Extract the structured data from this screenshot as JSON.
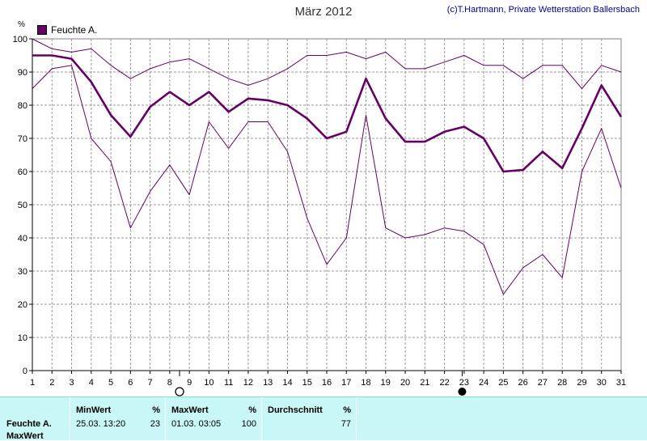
{
  "title": "März 2012",
  "copyright": "(c)T.Hartmann, Private Wetterstation Ballersbach",
  "unit": "%",
  "legend": "Feuchte A.",
  "chart_data": {
    "type": "line",
    "x": [
      1,
      2,
      3,
      4,
      5,
      6,
      7,
      8,
      9,
      10,
      11,
      12,
      13,
      14,
      15,
      16,
      17,
      18,
      19,
      20,
      21,
      22,
      23,
      24,
      25,
      26,
      27,
      28,
      29,
      30,
      31
    ],
    "xlim": [
      1,
      31
    ],
    "ylim": [
      0,
      100
    ],
    "yticks": [
      0,
      10,
      20,
      30,
      40,
      50,
      60,
      70,
      80,
      90,
      100
    ],
    "grid": true,
    "legend_position": "top-left",
    "series": [
      {
        "name": "Feuchte A.",
        "role": "mean",
        "color": "#660066",
        "values": [
          95,
          95,
          94,
          87,
          77,
          70.5,
          79.5,
          84,
          80,
          84,
          78,
          82,
          81.5,
          80,
          76,
          70,
          72,
          88,
          76,
          69,
          69,
          72,
          73.5,
          70,
          60,
          60.5,
          66,
          61,
          73,
          86,
          76.5
        ]
      },
      {
        "role": "max",
        "color": "#660066",
        "values": [
          100,
          97,
          96,
          97,
          92,
          88,
          91,
          93,
          94,
          91,
          88,
          86,
          88,
          91,
          95,
          95,
          96,
          94,
          96,
          91,
          91,
          93,
          95,
          92,
          92,
          88,
          92,
          92,
          85,
          92,
          90
        ]
      },
      {
        "role": "min",
        "color": "#660066",
        "values": [
          85,
          91,
          92,
          70,
          63,
          43,
          54,
          62,
          53,
          75,
          67,
          75,
          75,
          66,
          46,
          32,
          40,
          77,
          43,
          40,
          41,
          43,
          42,
          38,
          23,
          31,
          35,
          28,
          60,
          73,
          55
        ]
      }
    ],
    "annotations": [
      {
        "x": 8.5,
        "symbol": "full-moon",
        "label": "○"
      },
      {
        "x": 22.9,
        "symbol": "new-moon",
        "label": "●"
      }
    ]
  },
  "stats": {
    "label_1": "Feuchte A.",
    "label_2": "MaxWert",
    "min_header": "MinWert",
    "min_unit": "%",
    "min_date": "25.03.  13:20",
    "min_value": "23",
    "max_header": "MaxWert",
    "max_unit": "%",
    "max_date": "01.03.  03:05",
    "max_value": "100",
    "avg_header": "Durchschnitt",
    "avg_unit": "%",
    "avg_value": "77"
  }
}
